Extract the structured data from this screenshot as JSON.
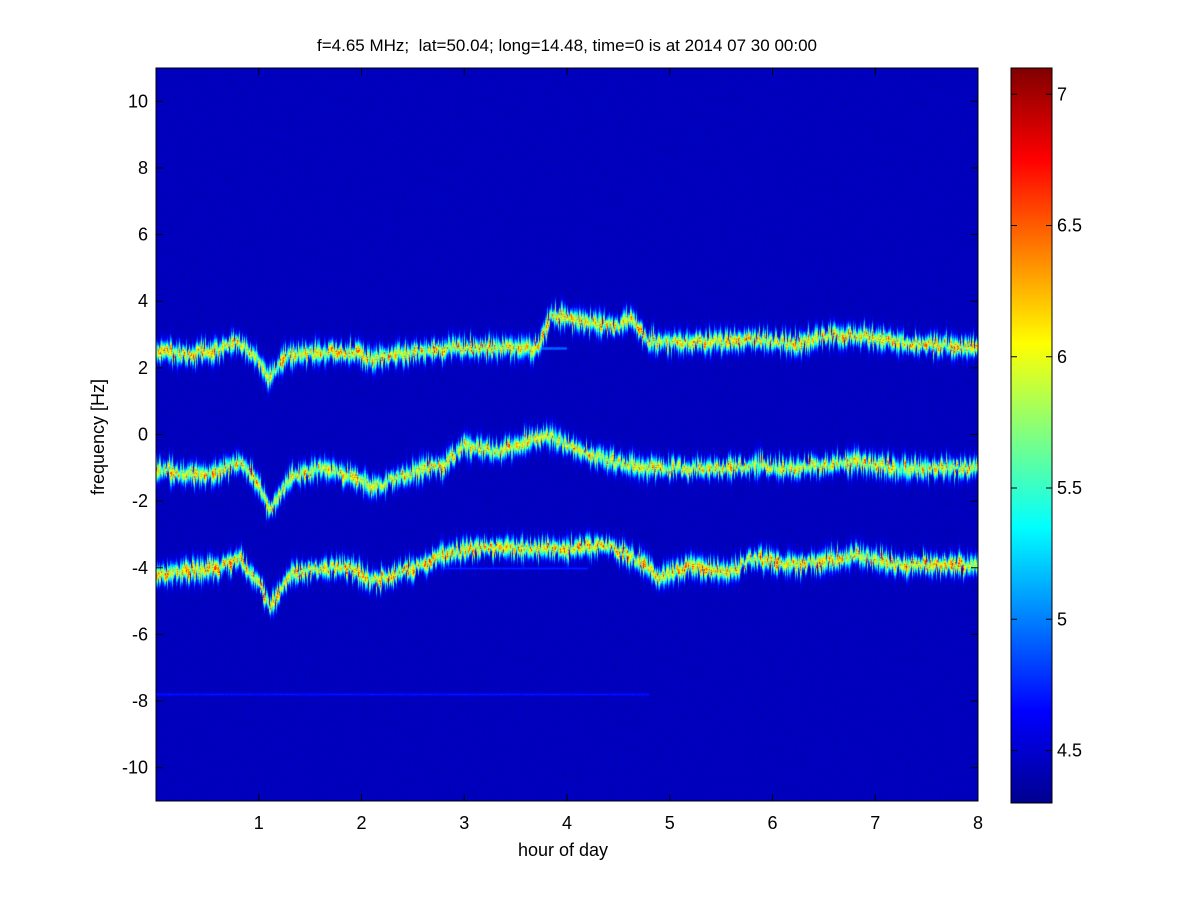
{
  "chart_data": {
    "type": "heatmap",
    "title": "f=4.65 MHz;  lat=50.04; long=14.48, time=0 is at 2014 07 30 00:00",
    "xlabel": "hour of day",
    "ylabel": "frequency [Hz]",
    "xlim": [
      0,
      8
    ],
    "ylim": [
      -11,
      11
    ],
    "x_ticks": [
      1,
      2,
      3,
      4,
      5,
      6,
      7,
      8
    ],
    "y_ticks": [
      -10,
      -8,
      -6,
      -4,
      -2,
      0,
      2,
      4,
      6,
      8,
      10
    ],
    "colorbar": {
      "range": [
        4.3,
        7.1
      ],
      "ticks": [
        4.5,
        5,
        5.5,
        6,
        6.5,
        7
      ],
      "colormap": "jet"
    },
    "background_level": 4.3,
    "traces": [
      {
        "name": "upper",
        "points": [
          [
            0.0,
            2.5
          ],
          [
            0.3,
            2.4
          ],
          [
            0.6,
            2.55
          ],
          [
            0.8,
            2.8
          ],
          [
            1.0,
            2.2
          ],
          [
            1.1,
            1.7
          ],
          [
            1.25,
            2.4
          ],
          [
            1.6,
            2.5
          ],
          [
            1.9,
            2.5
          ],
          [
            2.1,
            2.3
          ],
          [
            2.5,
            2.5
          ],
          [
            2.8,
            2.6
          ],
          [
            3.2,
            2.6
          ],
          [
            3.7,
            2.6
          ],
          [
            3.85,
            3.6
          ],
          [
            4.2,
            3.4
          ],
          [
            4.5,
            3.2
          ],
          [
            4.6,
            3.5
          ],
          [
            4.8,
            2.8
          ],
          [
            5.1,
            2.8
          ],
          [
            5.4,
            2.8
          ],
          [
            5.8,
            2.9
          ],
          [
            6.2,
            2.7
          ],
          [
            6.5,
            3.0
          ],
          [
            6.8,
            3.0
          ],
          [
            7.2,
            2.8
          ],
          [
            7.6,
            2.7
          ],
          [
            8.0,
            2.6
          ]
        ],
        "peak": 6.9
      },
      {
        "name": "middle",
        "points": [
          [
            0.0,
            -1.0
          ],
          [
            0.3,
            -1.2
          ],
          [
            0.6,
            -1.1
          ],
          [
            0.8,
            -0.8
          ],
          [
            1.0,
            -1.5
          ],
          [
            1.1,
            -2.3
          ],
          [
            1.3,
            -1.3
          ],
          [
            1.6,
            -1.0
          ],
          [
            1.9,
            -1.2
          ],
          [
            2.1,
            -1.6
          ],
          [
            2.5,
            -1.1
          ],
          [
            2.8,
            -0.9
          ],
          [
            3.0,
            -0.3
          ],
          [
            3.3,
            -0.5
          ],
          [
            3.7,
            -0.1
          ],
          [
            3.8,
            0.0
          ],
          [
            4.2,
            -0.6
          ],
          [
            4.6,
            -0.9
          ],
          [
            5.0,
            -1.0
          ],
          [
            5.5,
            -1.0
          ],
          [
            5.8,
            -0.9
          ],
          [
            6.2,
            -1.0
          ],
          [
            6.5,
            -0.9
          ],
          [
            6.8,
            -0.8
          ],
          [
            7.2,
            -1.0
          ],
          [
            7.6,
            -1.0
          ],
          [
            8.0,
            -1.0
          ]
        ],
        "peak": 6.8
      },
      {
        "name": "lower",
        "points": [
          [
            0.0,
            -4.2
          ],
          [
            0.3,
            -4.1
          ],
          [
            0.6,
            -4.0
          ],
          [
            0.8,
            -3.7
          ],
          [
            1.0,
            -4.4
          ],
          [
            1.1,
            -5.2
          ],
          [
            1.3,
            -4.2
          ],
          [
            1.6,
            -4.0
          ],
          [
            1.9,
            -4.0
          ],
          [
            2.1,
            -4.4
          ],
          [
            2.5,
            -4.0
          ],
          [
            2.8,
            -3.6
          ],
          [
            3.1,
            -3.4
          ],
          [
            3.6,
            -3.4
          ],
          [
            4.0,
            -3.4
          ],
          [
            4.4,
            -3.3
          ],
          [
            4.7,
            -3.8
          ],
          [
            4.9,
            -4.3
          ],
          [
            5.2,
            -3.9
          ],
          [
            5.6,
            -4.1
          ],
          [
            5.8,
            -3.7
          ],
          [
            6.2,
            -3.9
          ],
          [
            6.5,
            -3.8
          ],
          [
            6.8,
            -3.6
          ],
          [
            7.2,
            -3.9
          ],
          [
            7.6,
            -3.9
          ],
          [
            8.0,
            -3.9
          ]
        ],
        "peak": 7.0
      }
    ],
    "faint_lines": [
      {
        "y": -7.8,
        "x_range": [
          0.0,
          4.8
        ],
        "level": 4.55
      },
      {
        "y": -4.0,
        "x_range": [
          2.8,
          4.2
        ],
        "level": 4.6
      },
      {
        "y": 2.6,
        "x_range": [
          2.8,
          4.0
        ],
        "level": 4.8
      }
    ]
  }
}
